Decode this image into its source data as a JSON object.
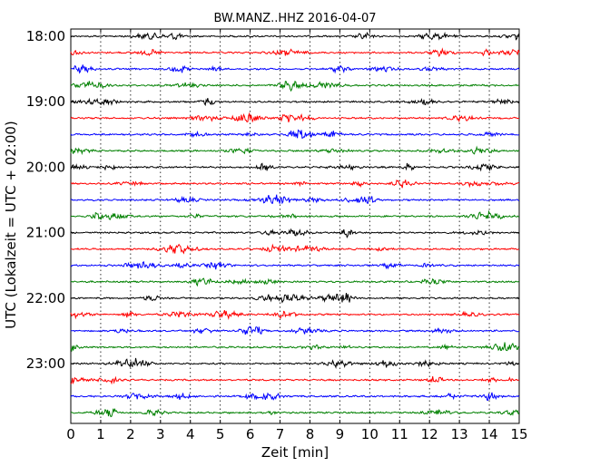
{
  "chart_data": {
    "type": "line",
    "title": "BW.MANZ..HHZ 2016-04-07",
    "xlabel": "Zeit  [min]",
    "ylabel": "UTC (Lokalzeit = UTC + 02:00)",
    "xlim": [
      0,
      15
    ],
    "x_ticks": [
      "0",
      "1",
      "2",
      "3",
      "4",
      "5",
      "6",
      "7",
      "8",
      "9",
      "10",
      "11",
      "12",
      "13",
      "14",
      "15"
    ],
    "y_tick_labels": [
      "18:00",
      "19:00",
      "20:00",
      "21:00",
      "22:00",
      "23:00"
    ],
    "trace_start": "18:00",
    "trace_interval_min": 15,
    "trace_count": 24,
    "trace_colors": [
      "#000000",
      "#ff0000",
      "#0000ff",
      "#008000"
    ],
    "grid": "vertical dotted"
  }
}
